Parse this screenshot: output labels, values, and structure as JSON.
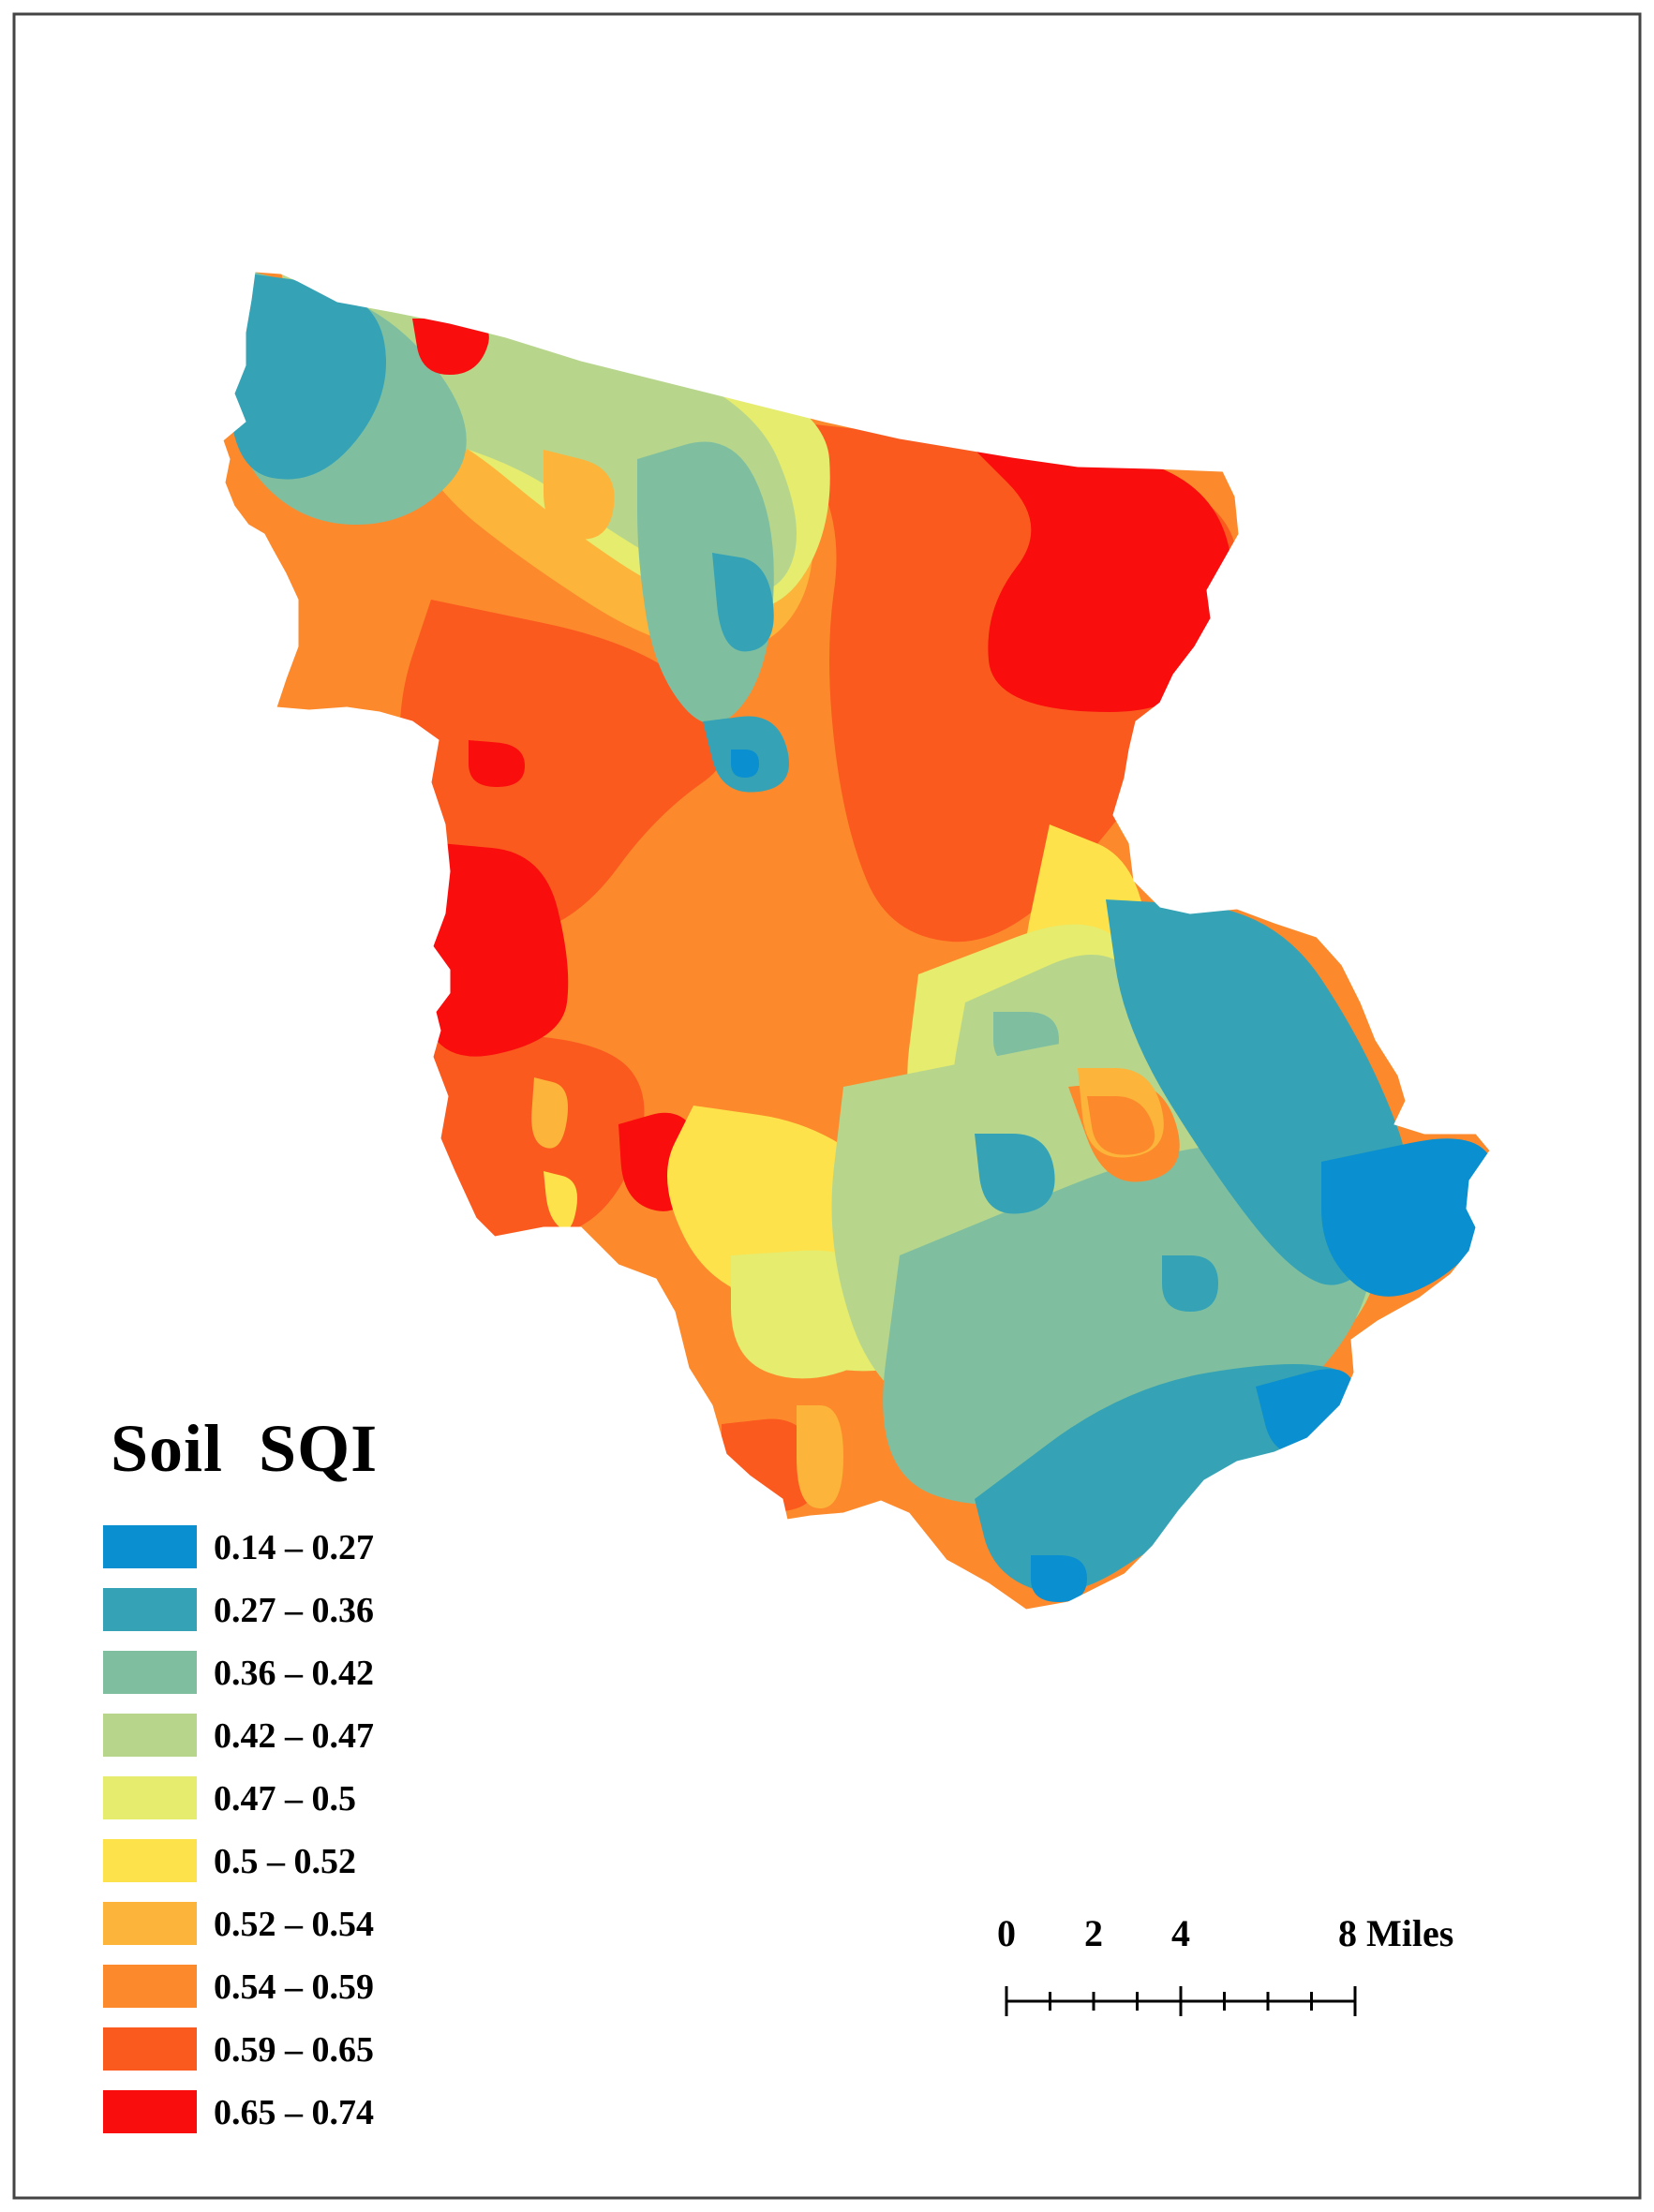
{
  "legend": {
    "title": "Soil  SQI",
    "classes": [
      {
        "label": "0.14 – 0.27",
        "color": "#0a8fd0"
      },
      {
        "label": "0.27 – 0.36",
        "color": "#35a3b5"
      },
      {
        "label": "0.36 – 0.42",
        "color": "#7fbfa0"
      },
      {
        "label": "0.42 – 0.47",
        "color": "#b7d68c"
      },
      {
        "label": "0.47 – 0.5",
        "color": "#e5ec6e"
      },
      {
        "label": "0.5 – 0.52",
        "color": "#fde24b"
      },
      {
        "label": "0.52 – 0.54",
        "color": "#fdb43a"
      },
      {
        "label": "0.54 – 0.59",
        "color": "#fc8a2c"
      },
      {
        "label": "0.59 – 0.65",
        "color": "#fb5a1f"
      },
      {
        "label": "0.65 – 0.74",
        "color": "#f90d0d"
      }
    ]
  },
  "scale_bar": {
    "ticks": [
      "0",
      "2",
      "4",
      "8 Miles"
    ],
    "tick_values": [
      0,
      2,
      4,
      8
    ],
    "max": 8,
    "minor_divisions": 8
  }
}
